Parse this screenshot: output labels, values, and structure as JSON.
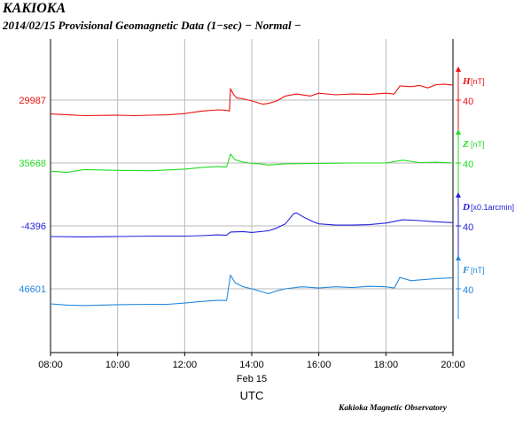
{
  "title": "KAKIOKA",
  "subtitle": "2014/02/15  Provisional Geomagnetic Data (1−sec)  − Normal −",
  "credit": "Kakioka Magnetic Observatory",
  "chart_data": {
    "type": "line",
    "x_ticks": [
      "08:00",
      "10:00",
      "12:00",
      "14:00",
      "16:00",
      "18:00",
      "20:00"
    ],
    "x_range": [
      "08:00",
      "20:00"
    ],
    "xlabel_date": "Feb 15",
    "xlabel": "UTC",
    "grid": true,
    "series": [
      {
        "component": "H",
        "unit": "[nT]",
        "baseline": "29987",
        "scale": "40",
        "color": "#ee1111",
        "points": [
          [
            "08:00",
            -34
          ],
          [
            "08:30",
            -36
          ],
          [
            "09:00",
            -38
          ],
          [
            "10:00",
            -37
          ],
          [
            "10:30",
            -38
          ],
          [
            "11:00",
            -37
          ],
          [
            "11:30",
            -36
          ],
          [
            "12:00",
            -33
          ],
          [
            "12:30",
            -27
          ],
          [
            "13:00",
            -24
          ],
          [
            "13:15",
            -25
          ],
          [
            "13:20",
            -27
          ],
          [
            "13:22",
            28
          ],
          [
            "13:27",
            15
          ],
          [
            "13:33",
            5
          ],
          [
            "13:45",
            3
          ],
          [
            "14:00",
            -2
          ],
          [
            "14:20",
            -10
          ],
          [
            "14:30",
            -8
          ],
          [
            "14:45",
            -2
          ],
          [
            "15:00",
            10
          ],
          [
            "15:20",
            15
          ],
          [
            "15:45",
            10
          ],
          [
            "16:00",
            17
          ],
          [
            "16:30",
            13
          ],
          [
            "17:00",
            15
          ],
          [
            "17:30",
            14
          ],
          [
            "18:00",
            17
          ],
          [
            "18:15",
            15
          ],
          [
            "18:25",
            35
          ],
          [
            "18:45",
            33
          ],
          [
            "19:00",
            36
          ],
          [
            "19:15",
            30
          ],
          [
            "19:30",
            38
          ],
          [
            "19:45",
            39
          ],
          [
            "20:00",
            37
          ]
        ]
      },
      {
        "component": "Z",
        "unit": "[nT]",
        "baseline": "35668",
        "scale": "40",
        "color": "#22dd22",
        "points": [
          [
            "08:00",
            -20
          ],
          [
            "08:30",
            -23
          ],
          [
            "09:00",
            -16
          ],
          [
            "10:00",
            -18
          ],
          [
            "11:00",
            -19
          ],
          [
            "12:00",
            -15
          ],
          [
            "12:30",
            -11
          ],
          [
            "13:00",
            -9
          ],
          [
            "13:15",
            -10
          ],
          [
            "13:22",
            22
          ],
          [
            "13:30",
            8
          ],
          [
            "13:45",
            2
          ],
          [
            "14:00",
            -1
          ],
          [
            "14:15",
            -2
          ],
          [
            "14:30",
            -5
          ],
          [
            "15:00",
            -2
          ],
          [
            "16:00",
            -1
          ],
          [
            "17:00",
            0
          ],
          [
            "18:00",
            0
          ],
          [
            "18:30",
            7
          ],
          [
            "19:00",
            1
          ],
          [
            "19:30",
            2
          ],
          [
            "20:00",
            0
          ]
        ]
      },
      {
        "component": "D",
        "unit": "[x0.1arcmin]",
        "baseline": "-4396",
        "scale": "40",
        "color": "#2222dd",
        "points": [
          [
            "08:00",
            -26
          ],
          [
            "09:00",
            -27
          ],
          [
            "10:00",
            -26
          ],
          [
            "11:00",
            -25
          ],
          [
            "12:00",
            -25
          ],
          [
            "12:30",
            -24
          ],
          [
            "13:00",
            -22
          ],
          [
            "13:15",
            -23
          ],
          [
            "13:22",
            -15
          ],
          [
            "13:45",
            -14
          ],
          [
            "14:00",
            -16
          ],
          [
            "14:30",
            -12
          ],
          [
            "14:45",
            -5
          ],
          [
            "15:00",
            5
          ],
          [
            "15:15",
            30
          ],
          [
            "15:20",
            32
          ],
          [
            "15:35",
            20
          ],
          [
            "15:50",
            10
          ],
          [
            "16:00",
            5
          ],
          [
            "16:30",
            2
          ],
          [
            "17:00",
            2
          ],
          [
            "17:30",
            3
          ],
          [
            "18:00",
            7
          ],
          [
            "18:30",
            15
          ],
          [
            "19:00",
            13
          ],
          [
            "19:30",
            10
          ],
          [
            "20:00",
            8
          ]
        ]
      },
      {
        "component": "F",
        "unit": "[nT]",
        "baseline": "46601",
        "scale": "40",
        "color": "#2288dd",
        "points": [
          [
            "08:00",
            -37
          ],
          [
            "08:30",
            -40
          ],
          [
            "09:00",
            -41
          ],
          [
            "10:00",
            -39
          ],
          [
            "11:00",
            -38
          ],
          [
            "11:30",
            -38
          ],
          [
            "12:00",
            -35
          ],
          [
            "12:30",
            -31
          ],
          [
            "13:00",
            -28
          ],
          [
            "13:15",
            -29
          ],
          [
            "13:22",
            34
          ],
          [
            "13:30",
            15
          ],
          [
            "13:45",
            5
          ],
          [
            "14:00",
            0
          ],
          [
            "14:30",
            -12
          ],
          [
            "14:45",
            -5
          ],
          [
            "15:00",
            0
          ],
          [
            "15:30",
            5
          ],
          [
            "16:00",
            2
          ],
          [
            "16:30",
            5
          ],
          [
            "17:00",
            3
          ],
          [
            "17:30",
            6
          ],
          [
            "18:00",
            5
          ],
          [
            "18:15",
            2
          ],
          [
            "18:25",
            28
          ],
          [
            "18:45",
            20
          ],
          [
            "19:00",
            22
          ],
          [
            "19:30",
            25
          ],
          [
            "20:00",
            27
          ]
        ]
      }
    ]
  }
}
